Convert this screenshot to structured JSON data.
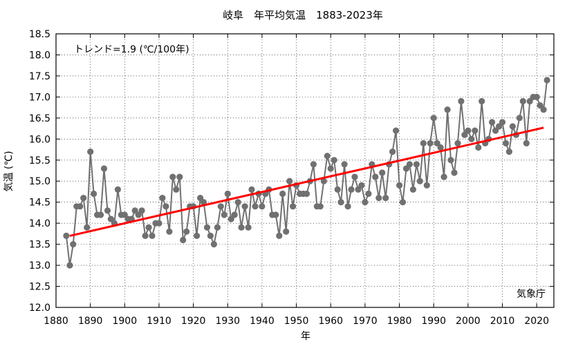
{
  "chart_data": {
    "type": "line",
    "title": "岐阜　年平均気温　1883-2023年",
    "xlabel": "年",
    "ylabel": "気温 (℃)",
    "xlim": [
      1880,
      2025
    ],
    "ylim": [
      12.0,
      18.5
    ],
    "xticks": [
      1880,
      1890,
      1900,
      1910,
      1920,
      1930,
      1940,
      1950,
      1960,
      1970,
      1980,
      1990,
      2000,
      2010,
      2020
    ],
    "yticks": [
      12.0,
      12.5,
      13.0,
      13.5,
      14.0,
      14.5,
      15.0,
      15.5,
      16.0,
      16.5,
      17.0,
      17.5,
      18.0,
      18.5
    ],
    "grid": true,
    "trend_label": "トレンド=1.9 (℃/100年)",
    "source": "気象庁",
    "colors": {
      "series": "#707070",
      "trend": "#ff0000",
      "frame": "#000000"
    },
    "series": [
      {
        "x": [
          1883,
          1884,
          1885,
          1886,
          1887,
          1888,
          1889,
          1890,
          1891,
          1892,
          1893,
          1894,
          1895,
          1896,
          1897,
          1898,
          1899,
          1900,
          1901,
          1902,
          1903,
          1904,
          1905,
          1906,
          1907,
          1908,
          1909,
          1910,
          1911,
          1912,
          1913,
          1914,
          1915,
          1916,
          1917,
          1918,
          1919,
          1920,
          1921,
          1922,
          1923,
          1924,
          1925,
          1926,
          1927,
          1928,
          1929,
          1930,
          1931,
          1932,
          1933,
          1934,
          1935,
          1936,
          1937,
          1938,
          1939,
          1940,
          1941,
          1942,
          1943,
          1944,
          1945,
          1946,
          1947,
          1948,
          1949,
          1950,
          1951,
          1952,
          1953,
          1954,
          1955,
          1956,
          1957,
          1958,
          1959,
          1960,
          1961,
          1962,
          1963,
          1964,
          1965,
          1966,
          1967,
          1968,
          1969,
          1970,
          1971,
          1972,
          1973,
          1974,
          1975,
          1976,
          1977,
          1978,
          1979,
          1980,
          1981,
          1982,
          1983,
          1984,
          1985,
          1986,
          1987,
          1988,
          1989,
          1990,
          1991,
          1992,
          1993,
          1994,
          1995,
          1996,
          1997,
          1998,
          1999,
          2000,
          2001,
          2002,
          2003,
          2004,
          2005,
          2006,
          2007,
          2008,
          2009,
          2010,
          2011,
          2012,
          2013,
          2014,
          2015,
          2016,
          2017,
          2018,
          2019,
          2020,
          2021,
          2022,
          2023
        ],
        "values": [
          13.7,
          13.0,
          13.5,
          14.4,
          14.4,
          14.6,
          13.9,
          15.7,
          14.7,
          14.2,
          14.2,
          15.3,
          14.3,
          14.1,
          14.0,
          14.8,
          14.2,
          14.2,
          14.1,
          14.1,
          14.3,
          14.2,
          14.3,
          13.7,
          13.9,
          13.7,
          14.0,
          14.0,
          14.6,
          14.4,
          13.8,
          15.1,
          14.8,
          15.1,
          13.6,
          13.8,
          14.4,
          14.4,
          13.7,
          14.6,
          14.5,
          13.9,
          13.7,
          13.5,
          13.9,
          14.4,
          14.2,
          14.7,
          14.1,
          14.2,
          14.5,
          13.9,
          14.4,
          13.9,
          14.8,
          14.4,
          14.7,
          14.4,
          14.7,
          14.8,
          14.2,
          14.2,
          13.7,
          14.7,
          13.8,
          15.0,
          14.4,
          14.9,
          14.7,
          14.7,
          14.7,
          15.0,
          15.4,
          14.4,
          14.4,
          15.0,
          15.6,
          15.3,
          15.5,
          14.8,
          14.5,
          15.4,
          14.4,
          14.8,
          15.1,
          14.8,
          14.9,
          14.5,
          14.7,
          15.4,
          15.1,
          14.6,
          15.2,
          14.6,
          15.4,
          15.7,
          16.2,
          14.9,
          14.5,
          15.3,
          15.4,
          14.8,
          15.4,
          15.0,
          15.9,
          14.9,
          15.9,
          16.5,
          15.9,
          15.8,
          15.1,
          16.7,
          15.5,
          15.2,
          15.9,
          16.9,
          16.1,
          16.2,
          16.0,
          16.2,
          15.8,
          16.9,
          15.9,
          16.0,
          16.4,
          16.2,
          16.3,
          16.4,
          15.9,
          15.7,
          16.3,
          16.1,
          16.5,
          16.9,
          15.9,
          16.9,
          17.0,
          17.0,
          16.8,
          16.7,
          17.4
        ]
      }
    ],
    "trend": {
      "x": [
        1884,
        2022
      ],
      "values": [
        13.7,
        16.27
      ]
    }
  }
}
